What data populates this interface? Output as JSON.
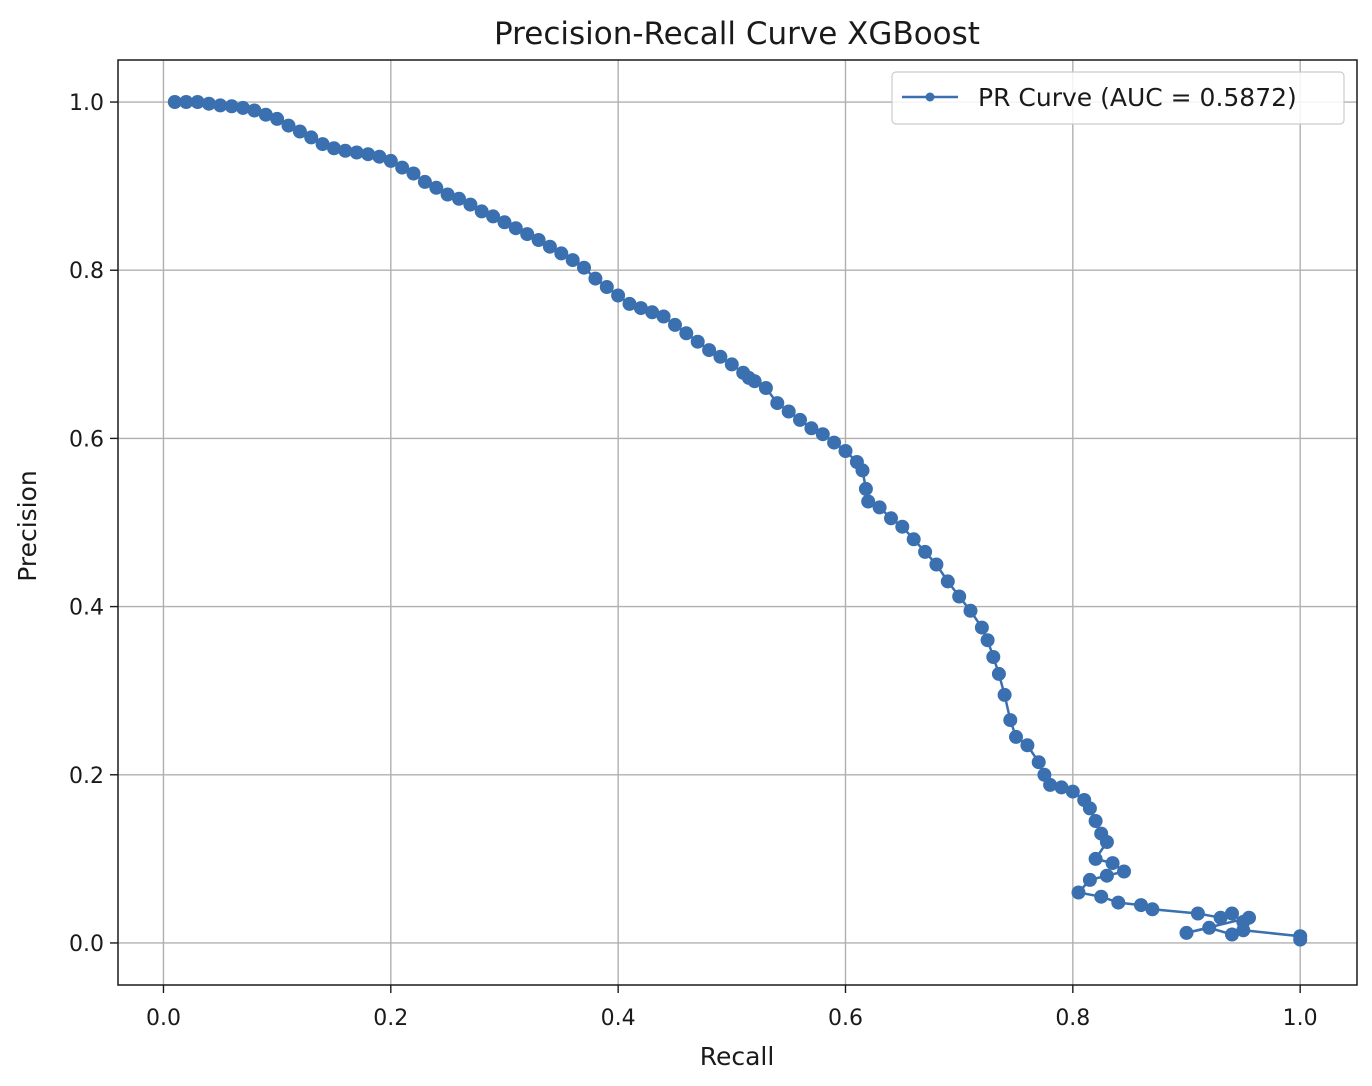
{
  "chart_data": {
    "type": "line",
    "title": "Precision-Recall Curve XGBoost",
    "xlabel": "Recall",
    "ylabel": "Precision",
    "xlim": [
      -0.04,
      1.05
    ],
    "ylim": [
      -0.05,
      1.05
    ],
    "xticks": [
      "0.0",
      "0.2",
      "0.4",
      "0.6",
      "0.8",
      "1.0"
    ],
    "yticks": [
      "0.0",
      "0.2",
      "0.4",
      "0.6",
      "0.8",
      "1.0"
    ],
    "grid": true,
    "legend_position": "top-right",
    "markers": true,
    "series": [
      {
        "name": "PR Curve (AUC = 0.5872)",
        "color": "#3a6fb0",
        "x": [
          0.01,
          0.02,
          0.03,
          0.04,
          0.05,
          0.06,
          0.07,
          0.08,
          0.09,
          0.1,
          0.11,
          0.12,
          0.13,
          0.14,
          0.15,
          0.16,
          0.17,
          0.18,
          0.19,
          0.2,
          0.21,
          0.22,
          0.23,
          0.24,
          0.25,
          0.26,
          0.27,
          0.28,
          0.29,
          0.3,
          0.31,
          0.32,
          0.33,
          0.34,
          0.35,
          0.36,
          0.37,
          0.38,
          0.39,
          0.4,
          0.41,
          0.42,
          0.43,
          0.44,
          0.45,
          0.46,
          0.47,
          0.48,
          0.49,
          0.5,
          0.51,
          0.515,
          0.52,
          0.53,
          0.54,
          0.55,
          0.56,
          0.57,
          0.58,
          0.59,
          0.6,
          0.61,
          0.615,
          0.618,
          0.62,
          0.63,
          0.64,
          0.65,
          0.66,
          0.67,
          0.68,
          0.69,
          0.7,
          0.71,
          0.72,
          0.725,
          0.73,
          0.735,
          0.74,
          0.745,
          0.75,
          0.76,
          0.77,
          0.775,
          0.78,
          0.79,
          0.8,
          0.81,
          0.815,
          0.82,
          0.825,
          0.83,
          0.82,
          0.835,
          0.845,
          0.83,
          0.815,
          0.805,
          0.825,
          0.84,
          0.86,
          0.87,
          0.91,
          0.93,
          0.94,
          0.95,
          0.955,
          0.9,
          0.92,
          0.94,
          0.95,
          1.0,
          1.0
        ],
        "y": [
          1.0,
          1.0,
          1.0,
          0.998,
          0.996,
          0.995,
          0.993,
          0.99,
          0.985,
          0.98,
          0.972,
          0.965,
          0.958,
          0.95,
          0.945,
          0.942,
          0.94,
          0.938,
          0.935,
          0.93,
          0.922,
          0.915,
          0.905,
          0.898,
          0.89,
          0.885,
          0.878,
          0.87,
          0.864,
          0.857,
          0.85,
          0.843,
          0.836,
          0.828,
          0.82,
          0.812,
          0.803,
          0.79,
          0.78,
          0.77,
          0.76,
          0.755,
          0.75,
          0.745,
          0.735,
          0.725,
          0.715,
          0.705,
          0.697,
          0.688,
          0.678,
          0.672,
          0.668,
          0.66,
          0.642,
          0.632,
          0.622,
          0.612,
          0.605,
          0.595,
          0.585,
          0.572,
          0.562,
          0.54,
          0.525,
          0.518,
          0.505,
          0.495,
          0.48,
          0.465,
          0.45,
          0.43,
          0.412,
          0.395,
          0.375,
          0.36,
          0.34,
          0.32,
          0.295,
          0.265,
          0.245,
          0.235,
          0.215,
          0.2,
          0.188,
          0.185,
          0.18,
          0.17,
          0.16,
          0.145,
          0.13,
          0.12,
          0.1,
          0.095,
          0.085,
          0.08,
          0.075,
          0.06,
          0.055,
          0.048,
          0.045,
          0.04,
          0.035,
          0.03,
          0.035,
          0.025,
          0.03,
          0.012,
          0.018,
          0.01,
          0.015,
          0.008,
          0.004
        ]
      }
    ]
  }
}
